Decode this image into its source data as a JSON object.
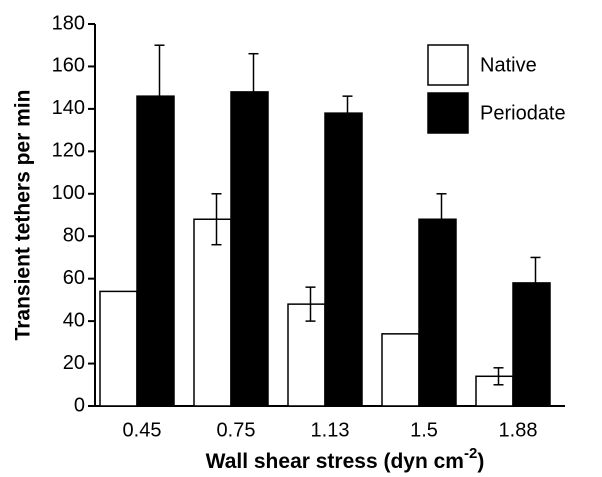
{
  "chart_data": {
    "type": "bar",
    "categories": [
      "0.45",
      "0.75",
      "1.13",
      "1.5",
      "1.88"
    ],
    "series": [
      {
        "name": "Native",
        "color": "#ffffff",
        "values": [
          54,
          88,
          48,
          34,
          14
        ],
        "errors": [
          null,
          12,
          8,
          null,
          4
        ]
      },
      {
        "name": "Periodate",
        "color": "#000000",
        "values": [
          146,
          148,
          138,
          88,
          58
        ],
        "errors": [
          24,
          18,
          8,
          12,
          12
        ]
      }
    ],
    "ylim": [
      0,
      180
    ],
    "yticks": [
      0,
      20,
      40,
      60,
      80,
      100,
      120,
      140,
      160,
      180
    ],
    "y_label": "Transient tethers per min",
    "x_label": {
      "text": "Wall shear stress (dyn cm",
      "superscript": "-2",
      "suffix": ")"
    },
    "legend": "top-right",
    "grid": false
  }
}
